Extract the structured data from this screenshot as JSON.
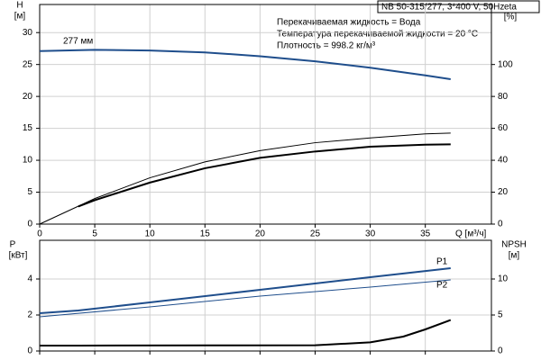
{
  "chart_data": [
    {
      "type": "line",
      "title": "NB 50-315/277, 3*400 V, 50Hz",
      "annotations": [
        "Перекачиваемая жидкость = Вода",
        "Температура перекачиваемой жидкости = 20 °C",
        "Плотность = 998.2 кг/м³"
      ],
      "xlabel": "Q [м³/ч]",
      "ylabel": "H",
      "yunit": "[м]",
      "y2label": "eta",
      "y2unit": "[%]",
      "xlim": [
        0,
        41
      ],
      "xticks": [
        0,
        5,
        10,
        15,
        20,
        25,
        30,
        35
      ],
      "ylim": [
        0,
        34.4
      ],
      "yticks": [
        0,
        5,
        10,
        15,
        20,
        25,
        30
      ],
      "y2lim": [
        0,
        137.6
      ],
      "y2ticks": [
        0,
        20,
        40,
        60,
        80,
        100
      ],
      "grid": true,
      "series": [
        {
          "name": "277 мм",
          "color": "#1f4e8c",
          "x": [
            0,
            5,
            10,
            15,
            20,
            25,
            30,
            35,
            37.3
          ],
          "values": [
            27.1,
            27.3,
            27.2,
            26.9,
            26.3,
            25.5,
            24.5,
            23.3,
            22.7
          ]
        },
        {
          "color": "#000000",
          "axis": "y2",
          "x": [
            0,
            5,
            10,
            15,
            20,
            25,
            30,
            35,
            37.3
          ],
          "values": [
            0,
            16,
            29,
            39,
            46,
            51,
            54,
            56.5,
            57
          ]
        },
        {
          "color": "#000000",
          "axis": "y2",
          "x": [
            3.5,
            5,
            10,
            15,
            20,
            25,
            30,
            35,
            37.3
          ],
          "values": [
            11,
            15,
            26,
            35,
            41.5,
            45.5,
            48.5,
            49.8,
            50
          ]
        }
      ]
    },
    {
      "type": "line",
      "ylabel": "P",
      "yunit": "[кВт]",
      "y2label": "NPSH",
      "y2unit": "[м]",
      "xlim": [
        0,
        41
      ],
      "xticks": [
        0,
        5,
        10,
        15,
        20,
        25,
        30,
        35
      ],
      "xtick_labels": false,
      "ylim": [
        0,
        6.15
      ],
      "yticks": [
        0,
        2,
        4
      ],
      "y2lim": [
        0,
        15.375
      ],
      "y2ticks": [
        0,
        5,
        10
      ],
      "grid": true,
      "series": [
        {
          "name": "P1",
          "color": "#1f4e8c",
          "x": [
            0,
            3.5,
            10,
            20,
            30,
            37.3
          ],
          "values": [
            2.1,
            2.25,
            2.7,
            3.4,
            4.1,
            4.6
          ]
        },
        {
          "name": "P2",
          "color": "#1f4e8c",
          "x": [
            0,
            10,
            20,
            30,
            37.3
          ],
          "values": [
            1.9,
            2.45,
            3.05,
            3.55,
            3.95
          ]
        },
        {
          "color": "#000000",
          "axis": "y2",
          "x": [
            0,
            3.5,
            15,
            25,
            30,
            33,
            35,
            37.3
          ],
          "values": [
            0.75,
            0.75,
            0.78,
            0.8,
            1.2,
            2,
            3,
            4.3
          ]
        }
      ]
    }
  ]
}
